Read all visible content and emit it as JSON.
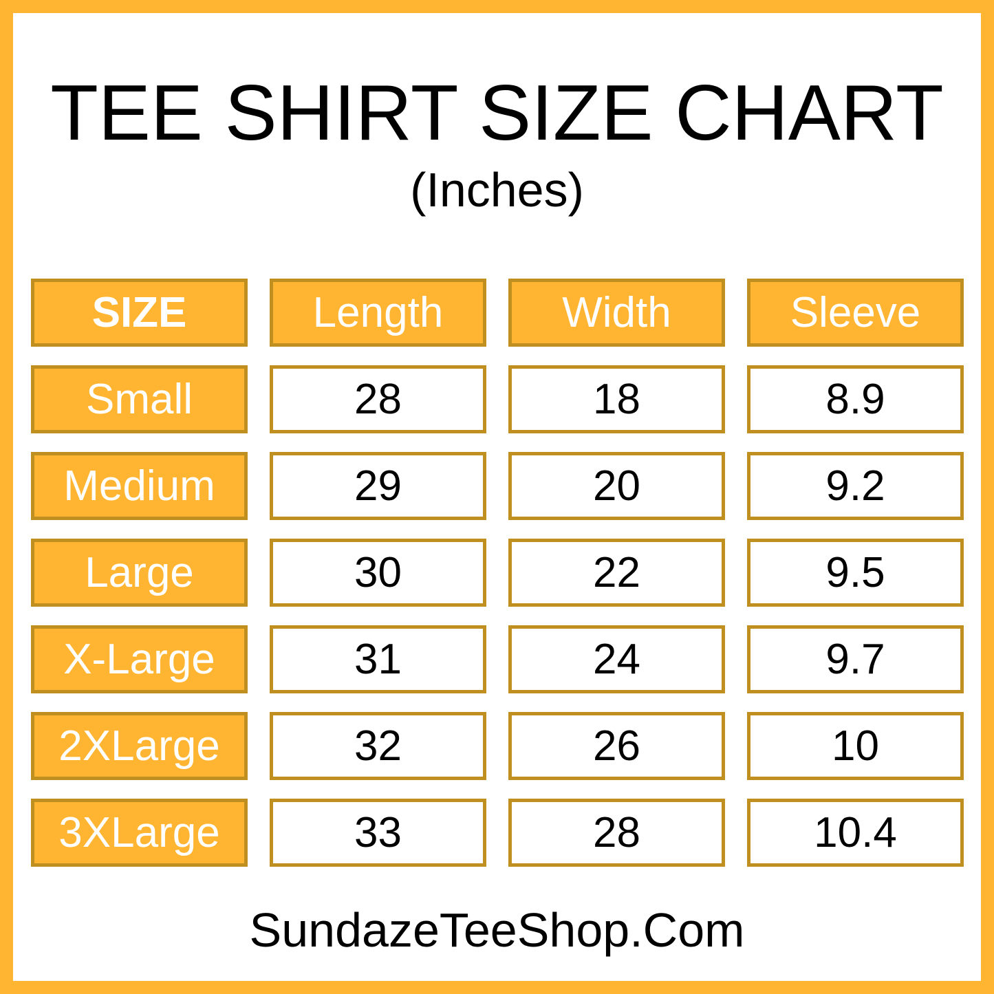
{
  "title": "TEE SHIRT SIZE CHART",
  "subtitle": "(Inches)",
  "footer": "SundazeTeeShop.Com",
  "colors": {
    "accent": "#FFB531",
    "border": "#BF8F20"
  },
  "table": {
    "headers": [
      "SIZE",
      "Length",
      "Width",
      "Sleeve"
    ],
    "rows": [
      [
        "Small",
        "28",
        "18",
        "8.9"
      ],
      [
        "Medium",
        "29",
        "20",
        "9.2"
      ],
      [
        "Large",
        "30",
        "22",
        "9.5"
      ],
      [
        "X-Large",
        "31",
        "24",
        "9.7"
      ],
      [
        "2XLarge",
        "32",
        "26",
        "10"
      ],
      [
        "3XLarge",
        "33",
        "28",
        "10.4"
      ]
    ]
  }
}
